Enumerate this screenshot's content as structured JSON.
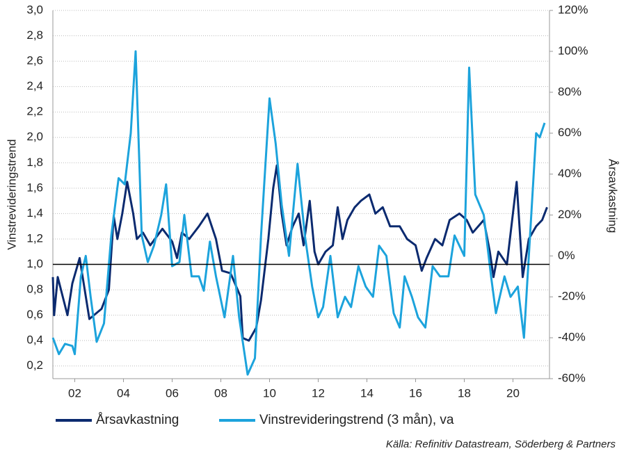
{
  "chart_data": {
    "type": "line",
    "y_label": "Vinstrevideringstrend",
    "y2_label": "Årsavkastning",
    "source": "Källa: Refinitiv Datastream, Söderberg & Partners",
    "xlim": [
      2001.1,
      2021.5
    ],
    "xticks": [
      {
        "value": 2002,
        "label": "02"
      },
      {
        "value": 2004,
        "label": "04"
      },
      {
        "value": 2006,
        "label": "06"
      },
      {
        "value": 2008,
        "label": "08"
      },
      {
        "value": 2010,
        "label": "10"
      },
      {
        "value": 2012,
        "label": "12"
      },
      {
        "value": 2014,
        "label": "14"
      },
      {
        "value": 2016,
        "label": "16"
      },
      {
        "value": 2018,
        "label": "18"
      },
      {
        "value": 2020,
        "label": "20"
      }
    ],
    "ylim": [
      0.1,
      3.0
    ],
    "yticks": [
      {
        "value": 0.2,
        "label": "0,2"
      },
      {
        "value": 0.4,
        "label": "0,4"
      },
      {
        "value": 0.6,
        "label": "0,6"
      },
      {
        "value": 0.8,
        "label": "0,8"
      },
      {
        "value": 1.0,
        "label": "1,0"
      },
      {
        "value": 1.2,
        "label": "1,2"
      },
      {
        "value": 1.4,
        "label": "1,4"
      },
      {
        "value": 1.6,
        "label": "1,6"
      },
      {
        "value": 1.8,
        "label": "1,8"
      },
      {
        "value": 2.0,
        "label": "2,0"
      },
      {
        "value": 2.2,
        "label": "2,2"
      },
      {
        "value": 2.4,
        "label": "2,4"
      },
      {
        "value": 2.6,
        "label": "2,6"
      },
      {
        "value": 2.8,
        "label": "2,8"
      },
      {
        "value": 3.0,
        "label": "3,0"
      }
    ],
    "y2lim": [
      -60,
      120
    ],
    "y2ticks": [
      {
        "value": -60,
        "label": "-60%"
      },
      {
        "value": -40,
        "label": "-40%"
      },
      {
        "value": -20,
        "label": "-20%"
      },
      {
        "value": 0,
        "label": "0%"
      },
      {
        "value": 20,
        "label": "20%"
      },
      {
        "value": 40,
        "label": "40%"
      },
      {
        "value": 60,
        "label": "60%"
      },
      {
        "value": 80,
        "label": "80%"
      },
      {
        "value": 100,
        "label": "100%"
      },
      {
        "value": 120,
        "label": "120%"
      }
    ],
    "reference_line": 1.0,
    "grid": true,
    "series": [
      {
        "name": "Årsavkastning",
        "color": "#0b2a6f",
        "axis": "y",
        "x": [
          2001.1,
          2001.15,
          2001.3,
          2001.5,
          2001.7,
          2001.9,
          2002.2,
          2002.6,
          2003.1,
          2003.4,
          2003.6,
          2003.75,
          2003.95,
          2004.15,
          2004.4,
          2004.55,
          2004.8,
          2005.1,
          2005.6,
          2006.0,
          2006.2,
          2006.4,
          2006.7,
          2007.1,
          2007.45,
          2007.8,
          2008.05,
          2008.4,
          2008.8,
          2008.9,
          2009.15,
          2009.45,
          2009.65,
          2009.95,
          2010.15,
          2010.3,
          2010.5,
          2010.7,
          2010.95,
          2011.2,
          2011.4,
          2011.65,
          2011.85,
          2012.0,
          2012.3,
          2012.6,
          2012.8,
          2013.0,
          2013.2,
          2013.5,
          2013.75,
          2014.1,
          2014.35,
          2014.65,
          2014.95,
          2015.35,
          2015.65,
          2016.0,
          2016.25,
          2016.45,
          2016.8,
          2017.1,
          2017.4,
          2017.8,
          2018.1,
          2018.35,
          2018.8,
          2019.05,
          2019.2,
          2019.4,
          2019.75,
          2020.15,
          2020.4,
          2020.65,
          2020.95,
          2021.2,
          2021.4
        ],
        "values": [
          0.9,
          0.6,
          0.9,
          0.75,
          0.6,
          0.85,
          1.05,
          0.57,
          0.65,
          0.8,
          1.38,
          1.2,
          1.4,
          1.65,
          1.4,
          1.2,
          1.25,
          1.15,
          1.28,
          1.18,
          1.05,
          1.25,
          1.2,
          1.3,
          1.4,
          1.2,
          0.95,
          0.93,
          0.75,
          0.42,
          0.4,
          0.5,
          0.72,
          1.2,
          1.6,
          1.78,
          1.4,
          1.15,
          1.3,
          1.4,
          1.15,
          1.5,
          1.1,
          1.0,
          1.1,
          1.15,
          1.45,
          1.2,
          1.35,
          1.45,
          1.5,
          1.55,
          1.4,
          1.45,
          1.3,
          1.3,
          1.2,
          1.15,
          0.95,
          1.05,
          1.2,
          1.15,
          1.35,
          1.4,
          1.35,
          1.25,
          1.35,
          1.1,
          0.9,
          1.1,
          1.0,
          1.65,
          0.9,
          1.2,
          1.3,
          1.35,
          1.45
        ]
      },
      {
        "name": "Vinstrevideringstrend (3 mån), va",
        "color": "#1ca3dc",
        "axis": "y2",
        "x": [
          2001.1,
          2001.35,
          2001.6,
          2001.9,
          2002.0,
          2002.25,
          2002.45,
          2002.65,
          2002.9,
          2003.2,
          2003.5,
          2003.8,
          2004.05,
          2004.3,
          2004.5,
          2004.75,
          2005.0,
          2005.25,
          2005.55,
          2005.75,
          2006.0,
          2006.3,
          2006.5,
          2006.8,
          2007.1,
          2007.3,
          2007.55,
          2007.8,
          2008.15,
          2008.5,
          2008.75,
          2009.1,
          2009.4,
          2009.65,
          2010.0,
          2010.25,
          2010.5,
          2010.8,
          2011.15,
          2011.45,
          2011.75,
          2012.0,
          2012.2,
          2012.5,
          2012.8,
          2013.1,
          2013.35,
          2013.65,
          2013.95,
          2014.25,
          2014.5,
          2014.8,
          2015.1,
          2015.35,
          2015.55,
          2015.85,
          2016.1,
          2016.4,
          2016.7,
          2017.0,
          2017.35,
          2017.6,
          2018.0,
          2018.2,
          2018.45,
          2018.8,
          2019.1,
          2019.3,
          2019.65,
          2019.9,
          2020.2,
          2020.45,
          2020.75,
          2020.95,
          2021.1,
          2021.3
        ],
        "values": [
          -40,
          -48,
          -43,
          -44,
          -48,
          -10,
          0,
          -20,
          -42,
          -33,
          10,
          38,
          35,
          60,
          100,
          10,
          -3,
          5,
          20,
          35,
          -5,
          -3,
          20,
          -10,
          -10,
          -17,
          7,
          -10,
          -30,
          0,
          -30,
          -58,
          -50,
          10,
          77,
          55,
          25,
          0,
          45,
          10,
          -15,
          -30,
          -25,
          0,
          -30,
          -20,
          -25,
          -5,
          -15,
          -20,
          5,
          0,
          -28,
          -35,
          -10,
          -20,
          -30,
          -35,
          -5,
          -10,
          -10,
          10,
          0,
          92,
          30,
          20,
          -10,
          -28,
          -10,
          -20,
          -15,
          -40,
          20,
          60,
          58,
          65
        ]
      }
    ]
  }
}
